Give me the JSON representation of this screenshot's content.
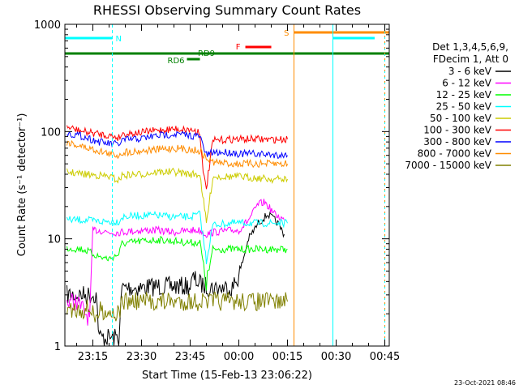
{
  "chart_data": {
    "type": "line",
    "title": "RHESSI Observing Summary Count Rates",
    "xlabel": "Start Time (15-Feb-13 23:06:22)",
    "ylabel": "Count Rate (s⁻¹ detector⁻¹)",
    "y_scale": "log",
    "ylim": [
      1,
      1000
    ],
    "xlim": [
      "23:06:22",
      "00:46:22"
    ],
    "x_ticks": [
      "23:15",
      "23:30",
      "23:45",
      "00:00",
      "00:15",
      "00:30",
      "00:45"
    ],
    "y_ticks": [
      "1",
      "10",
      "100",
      "1000"
    ],
    "grid": false,
    "legend_position": "right",
    "legend_header": [
      "Det 1,3,4,5,6,9,",
      "FDecim 1, Att 0"
    ],
    "footer": "23-Oct-2021 08:46",
    "series": [
      {
        "name": "3 - 6 keV",
        "color": "#000000",
        "x": [
          "23:07",
          "23:16",
          "23:17",
          "23:23",
          "23:24",
          "23:30",
          "23:35",
          "23:40",
          "23:45",
          "23:46",
          "23:48",
          "23:50",
          "23:52",
          "23:58",
          "00:00",
          "00:03",
          "00:06",
          "00:09",
          "00:12",
          "00:14"
        ],
        "y": [
          3.0,
          3.0,
          1.2,
          1.2,
          3.5,
          3.5,
          3.6,
          3.6,
          3.6,
          4.3,
          3.8,
          3.6,
          3.5,
          3.5,
          4.5,
          10,
          14,
          17,
          14,
          11
        ]
      },
      {
        "name": "6 - 12 keV",
        "color": "#ff00ff",
        "x": [
          "23:07",
          "23:10",
          "23:14",
          "23:15",
          "23:17",
          "23:20",
          "23:23",
          "23:30",
          "23:35",
          "23:40",
          "23:45",
          "23:48",
          "23:50",
          "23:52",
          "23:58",
          "00:00",
          "00:03",
          "00:06",
          "00:08",
          "00:11",
          "00:14"
        ],
        "y": [
          2.6,
          2.6,
          1.8,
          12,
          12,
          11.5,
          11.5,
          12,
          12,
          11.5,
          12,
          12,
          11,
          11.5,
          12,
          12,
          15,
          21,
          22,
          17,
          15
        ]
      },
      {
        "name": "12 - 25 keV",
        "color": "#00ff00",
        "x": [
          "23:07",
          "23:12",
          "23:17",
          "23:20",
          "23:23",
          "23:24",
          "23:30",
          "23:35",
          "23:40",
          "23:45",
          "23:48",
          "23:50",
          "23:52",
          "23:58",
          "00:00",
          "00:05",
          "00:10",
          "00:15"
        ],
        "y": [
          8.2,
          8.0,
          6.8,
          6.5,
          7.2,
          9.0,
          9.5,
          9.8,
          9.5,
          9.2,
          9.3,
          3.8,
          8.0,
          8.0,
          8.0,
          8.0,
          8.0,
          8.0
        ]
      },
      {
        "name": "25 - 50 keV",
        "color": "#00ffff",
        "x": [
          "23:07",
          "23:12",
          "23:17",
          "23:20",
          "23:23",
          "23:24",
          "23:30",
          "23:35",
          "23:40",
          "23:45",
          "23:48",
          "23:50",
          "23:52",
          "23:58",
          "00:00",
          "00:05",
          "00:10",
          "00:15"
        ],
        "y": [
          15,
          15,
          14.5,
          14.5,
          14.5,
          16,
          16.5,
          16.5,
          16,
          16,
          17,
          6.2,
          13.5,
          14,
          14,
          14,
          14,
          14
        ]
      },
      {
        "name": "50 - 100 keV",
        "color": "#cccc00",
        "x": [
          "23:07",
          "23:12",
          "23:17",
          "23:20",
          "23:23",
          "23:24",
          "23:30",
          "23:35",
          "23:40",
          "23:45",
          "23:48",
          "23:50",
          "23:52",
          "23:58",
          "00:00",
          "00:05",
          "00:10",
          "00:15"
        ],
        "y": [
          42,
          40,
          39,
          38,
          35,
          39,
          40,
          42,
          42,
          40,
          40,
          14,
          38,
          38,
          38,
          37,
          36,
          36
        ]
      },
      {
        "name": "100 - 300 keV",
        "color": "#ff0000",
        "x": [
          "23:07",
          "23:12",
          "23:17",
          "23:20",
          "23:23",
          "23:24",
          "23:30",
          "23:35",
          "23:40",
          "23:45",
          "23:48",
          "23:49",
          "23:50",
          "23:52",
          "23:58",
          "00:00",
          "00:05",
          "00:10",
          "00:15"
        ],
        "y": [
          110,
          100,
          95,
          92,
          88,
          95,
          98,
          103,
          106,
          104,
          100,
          40,
          30,
          82,
          85,
          85,
          85,
          84,
          85
        ]
      },
      {
        "name": "300 - 800 keV",
        "color": "#0000ff",
        "x": [
          "23:07",
          "23:12",
          "23:17",
          "23:20",
          "23:23",
          "23:24",
          "23:30",
          "23:35",
          "23:40",
          "23:45",
          "23:48",
          "23:50",
          "23:52",
          "23:58",
          "00:00",
          "00:05",
          "00:10",
          "00:15"
        ],
        "y": [
          97,
          90,
          80,
          77,
          76,
          83,
          86,
          92,
          95,
          92,
          90,
          60,
          64,
          64,
          62,
          62,
          61,
          60
        ]
      },
      {
        "name": "800 - 7000 keV",
        "color": "#ff8c00",
        "x": [
          "23:07",
          "23:12",
          "23:17",
          "23:20",
          "23:23",
          "23:24",
          "23:30",
          "23:35",
          "23:40",
          "23:45",
          "23:48",
          "23:50",
          "23:52",
          "23:58",
          "00:00",
          "00:05",
          "00:10",
          "00:15"
        ],
        "y": [
          80,
          72,
          66,
          62,
          60,
          64,
          66,
          68,
          70,
          68,
          66,
          56,
          52,
          50,
          50,
          50,
          50,
          50
        ]
      },
      {
        "name": "7000 - 15000 keV",
        "color": "#808000",
        "x": [
          "23:07",
          "23:15",
          "23:16",
          "23:17",
          "23:23",
          "23:24",
          "23:30",
          "23:35",
          "23:40",
          "23:45",
          "23:50",
          "23:55",
          "00:00",
          "00:05",
          "00:10",
          "00:15"
        ],
        "y": [
          2.2,
          2.2,
          1.6,
          2.2,
          2.0,
          2.6,
          2.6,
          2.6,
          2.6,
          2.6,
          2.6,
          2.6,
          2.6,
          2.6,
          2.6,
          2.6
        ]
      }
    ],
    "markers": [
      {
        "label": "N",
        "color": "#00ffff",
        "start": "23:06:22",
        "end": "23:21"
      },
      {
        "label": "S",
        "color": "#ff8c00",
        "start": "00:17",
        "end": "00:46:22"
      },
      {
        "label": "F",
        "color": "#ff0000",
        "start": "00:02",
        "end": "00:10"
      },
      {
        "label": "RD6",
        "color": "#008000",
        "start": "23:44",
        "end": "23:48"
      },
      {
        "label": "RD9",
        "color": "#008000",
        "start": "23:06:22",
        "end": "00:46:22"
      }
    ]
  }
}
